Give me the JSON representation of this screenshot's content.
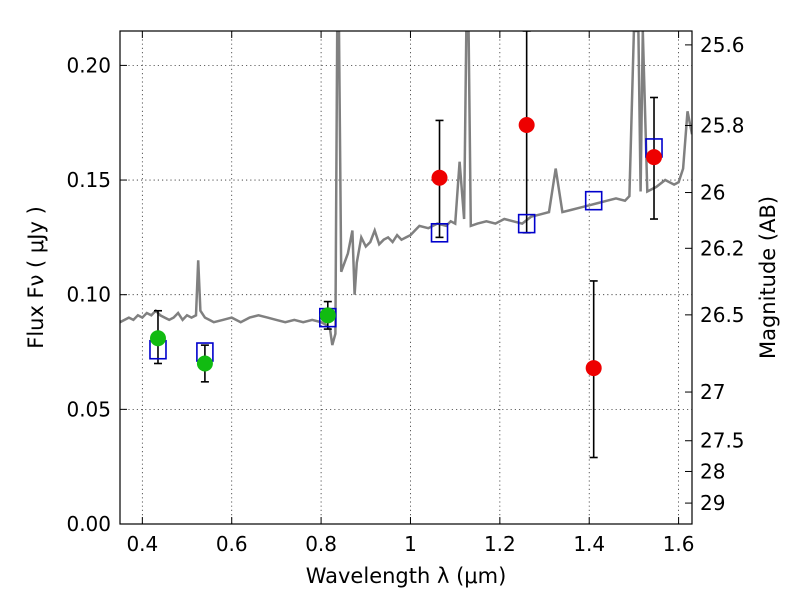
{
  "chart_data": {
    "type": "scatter",
    "title": "",
    "xlabel": "Wavelength  λ (μm)",
    "ylabel": "Flux  Fν  ( μJy )",
    "y2label": "Magnitude (AB)",
    "xlim": [
      0.35,
      1.63
    ],
    "ylim": [
      0.0,
      0.215
    ],
    "grid": true,
    "x_ticks": [
      {
        "value": 0.4,
        "label": "0.4"
      },
      {
        "value": 0.6,
        "label": "0.6"
      },
      {
        "value": 0.8,
        "label": "0.8"
      },
      {
        "value": 1.0,
        "label": "1"
      },
      {
        "value": 1.2,
        "label": "1.2"
      },
      {
        "value": 1.4,
        "label": "1.4"
      },
      {
        "value": 1.6,
        "label": "1.6"
      }
    ],
    "y_ticks": [
      {
        "value": 0.0,
        "label": "0.00"
      },
      {
        "value": 0.05,
        "label": "0.05"
      },
      {
        "value": 0.1,
        "label": "0.10"
      },
      {
        "value": 0.15,
        "label": "0.15"
      },
      {
        "value": 0.2,
        "label": "0.20"
      }
    ],
    "y2_ticks": [
      {
        "value": 25.6,
        "label": "25.6"
      },
      {
        "value": 25.8,
        "label": "25.8"
      },
      {
        "value": 26.0,
        "label": "26"
      },
      {
        "value": 26.2,
        "label": "26.2"
      },
      {
        "value": 26.5,
        "label": "26.5"
      },
      {
        "value": 27.0,
        "label": "27"
      },
      {
        "value": 27.5,
        "label": "27.5"
      },
      {
        "value": 28.0,
        "label": "28"
      },
      {
        "value": 29.0,
        "label": "29"
      }
    ],
    "colors": {
      "model": "#808080",
      "model_photometry": "#0000cc",
      "optical_observed": "#11bb11",
      "nir_observed": "#ee0000",
      "errorbar": "#000000"
    },
    "model_spectrum": [
      [
        0.35,
        0.088
      ],
      [
        0.36,
        0.089
      ],
      [
        0.37,
        0.09
      ],
      [
        0.38,
        0.089
      ],
      [
        0.39,
        0.091
      ],
      [
        0.4,
        0.09
      ],
      [
        0.41,
        0.092
      ],
      [
        0.42,
        0.091
      ],
      [
        0.43,
        0.093
      ],
      [
        0.44,
        0.091
      ],
      [
        0.45,
        0.09
      ],
      [
        0.46,
        0.089
      ],
      [
        0.47,
        0.09
      ],
      [
        0.48,
        0.092
      ],
      [
        0.49,
        0.089
      ],
      [
        0.5,
        0.091
      ],
      [
        0.51,
        0.09
      ],
      [
        0.52,
        0.091
      ],
      [
        0.525,
        0.115
      ],
      [
        0.53,
        0.093
      ],
      [
        0.54,
        0.09
      ],
      [
        0.55,
        0.089
      ],
      [
        0.56,
        0.088
      ],
      [
        0.58,
        0.089
      ],
      [
        0.6,
        0.09
      ],
      [
        0.62,
        0.088
      ],
      [
        0.64,
        0.09
      ],
      [
        0.66,
        0.091
      ],
      [
        0.68,
        0.09
      ],
      [
        0.7,
        0.089
      ],
      [
        0.72,
        0.088
      ],
      [
        0.74,
        0.089
      ],
      [
        0.76,
        0.088
      ],
      [
        0.78,
        0.089
      ],
      [
        0.8,
        0.088
      ],
      [
        0.81,
        0.087
      ],
      [
        0.82,
        0.085
      ],
      [
        0.825,
        0.078
      ],
      [
        0.832,
        0.083
      ],
      [
        0.836,
        0.215
      ],
      [
        0.84,
        0.215
      ],
      [
        0.845,
        0.11
      ],
      [
        0.86,
        0.118
      ],
      [
        0.87,
        0.128
      ],
      [
        0.875,
        0.1
      ],
      [
        0.88,
        0.114
      ],
      [
        0.89,
        0.125
      ],
      [
        0.9,
        0.121
      ],
      [
        0.91,
        0.123
      ],
      [
        0.92,
        0.128
      ],
      [
        0.93,
        0.122
      ],
      [
        0.94,
        0.124
      ],
      [
        0.95,
        0.125
      ],
      [
        0.96,
        0.123
      ],
      [
        0.97,
        0.126
      ],
      [
        0.98,
        0.124
      ],
      [
        0.99,
        0.125
      ],
      [
        1.0,
        0.126
      ],
      [
        1.01,
        0.128
      ],
      [
        1.02,
        0.13
      ],
      [
        1.04,
        0.129
      ],
      [
        1.06,
        0.131
      ],
      [
        1.08,
        0.13
      ],
      [
        1.09,
        0.132
      ],
      [
        1.1,
        0.131
      ],
      [
        1.11,
        0.158
      ],
      [
        1.12,
        0.133
      ],
      [
        1.125,
        0.215
      ],
      [
        1.13,
        0.215
      ],
      [
        1.135,
        0.13
      ],
      [
        1.15,
        0.131
      ],
      [
        1.17,
        0.132
      ],
      [
        1.19,
        0.131
      ],
      [
        1.21,
        0.133
      ],
      [
        1.23,
        0.132
      ],
      [
        1.25,
        0.131
      ],
      [
        1.27,
        0.134
      ],
      [
        1.29,
        0.135
      ],
      [
        1.31,
        0.136
      ],
      [
        1.325,
        0.155
      ],
      [
        1.34,
        0.136
      ],
      [
        1.36,
        0.137
      ],
      [
        1.38,
        0.138
      ],
      [
        1.4,
        0.139
      ],
      [
        1.42,
        0.14
      ],
      [
        1.44,
        0.141
      ],
      [
        1.46,
        0.142
      ],
      [
        1.48,
        0.141
      ],
      [
        1.49,
        0.143
      ],
      [
        1.5,
        0.215
      ],
      [
        1.51,
        0.215
      ],
      [
        1.515,
        0.145
      ],
      [
        1.52,
        0.215
      ],
      [
        1.53,
        0.145
      ],
      [
        1.55,
        0.147
      ],
      [
        1.57,
        0.15
      ],
      [
        1.59,
        0.148
      ],
      [
        1.6,
        0.149
      ],
      [
        1.61,
        0.155
      ],
      [
        1.62,
        0.18
      ],
      [
        1.63,
        0.17
      ]
    ],
    "model_photometry": [
      {
        "x": 0.435,
        "y": 0.076
      },
      {
        "x": 0.54,
        "y": 0.075
      },
      {
        "x": 0.815,
        "y": 0.09
      },
      {
        "x": 1.065,
        "y": 0.127
      },
      {
        "x": 1.26,
        "y": 0.131
      },
      {
        "x": 1.41,
        "y": 0.141
      },
      {
        "x": 1.545,
        "y": 0.164
      }
    ],
    "optical_observed": [
      {
        "x": 0.435,
        "y": 0.081,
        "yerr_low": 0.07,
        "yerr_high": 0.093
      },
      {
        "x": 0.54,
        "y": 0.07,
        "yerr_low": 0.062,
        "yerr_high": 0.078
      },
      {
        "x": 0.815,
        "y": 0.091,
        "yerr_low": 0.085,
        "yerr_high": 0.097
      }
    ],
    "nir_observed": [
      {
        "x": 1.065,
        "y": 0.151,
        "yerr_low": 0.125,
        "yerr_high": 0.176
      },
      {
        "x": 1.26,
        "y": 0.174,
        "yerr_low": 0.127,
        "yerr_high": 0.215
      },
      {
        "x": 1.41,
        "y": 0.068,
        "yerr_low": 0.029,
        "yerr_high": 0.106
      },
      {
        "x": 1.545,
        "y": 0.16,
        "yerr_low": 0.133,
        "yerr_high": 0.186
      }
    ]
  }
}
